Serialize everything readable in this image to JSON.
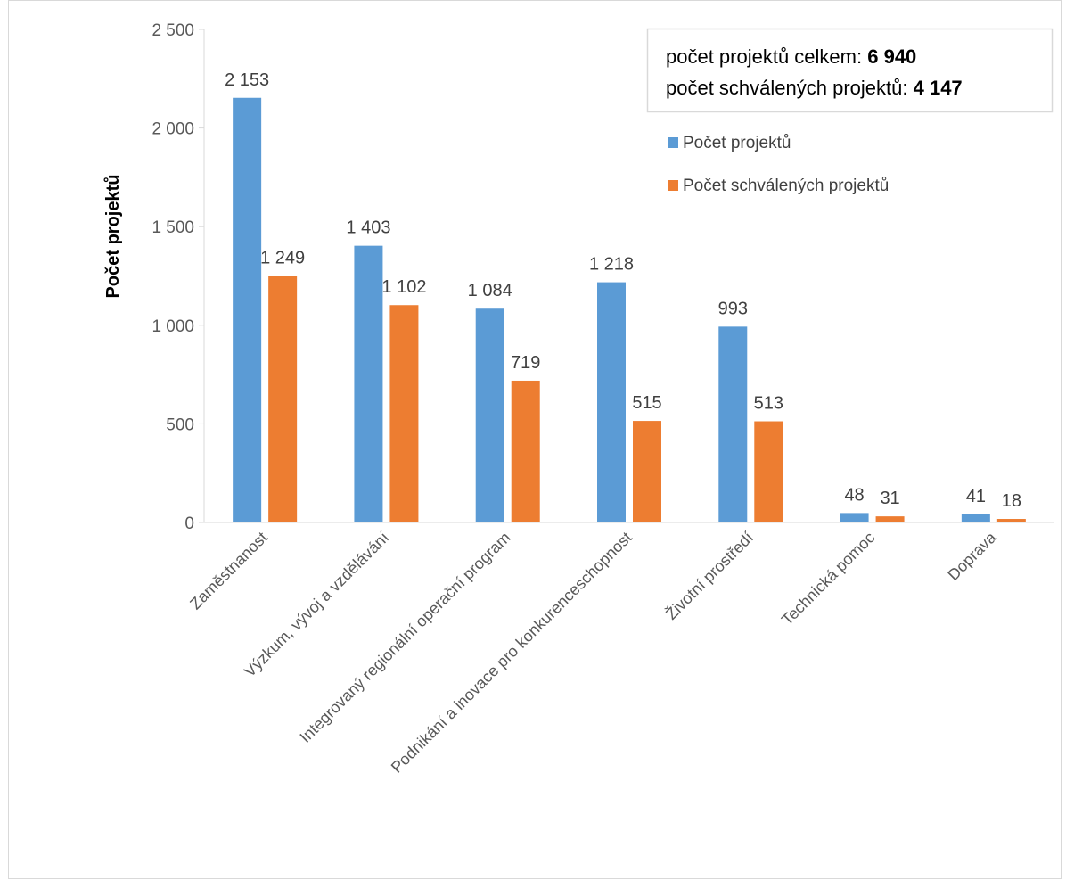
{
  "chart_data": {
    "type": "bar",
    "ylabel": "Počet projektů",
    "ylim": [
      0,
      2500
    ],
    "y_ticks": [
      0,
      500,
      1000,
      1500,
      2000,
      2500
    ],
    "y_tick_labels": [
      "0",
      "500",
      "1 000",
      "1 500",
      "2 000",
      "2 500"
    ],
    "categories": [
      "Zaměstnanost",
      "Výzkum, vývoj a vzdělávání",
      "Integrovaný regionální operační program",
      "Podnikání a inovace pro konkurenceschopnost",
      "Životní prostředí",
      "Technická pomoc",
      "Doprava"
    ],
    "series": [
      {
        "name": "Počet projektů",
        "color": "#5B9BD5",
        "values": [
          2153,
          1403,
          1084,
          1218,
          993,
          48,
          41
        ],
        "labels": [
          "2 153",
          "1 403",
          "1 084",
          "1 218",
          "993",
          "48",
          "41"
        ]
      },
      {
        "name": "Počet schválených projektů",
        "color": "#ED7D31",
        "values": [
          1249,
          1102,
          719,
          515,
          513,
          31,
          18
        ],
        "labels": [
          "1 249",
          "1 102",
          "719",
          "515",
          "513",
          "31",
          "18"
        ]
      }
    ],
    "legend_position": "top-right",
    "grid": false,
    "summary_box": {
      "line1_label": "počet projektů celkem: ",
      "line1_value": "6 940",
      "line2_label": "počet schválených projektů: ",
      "line2_value": "4 147"
    }
  }
}
